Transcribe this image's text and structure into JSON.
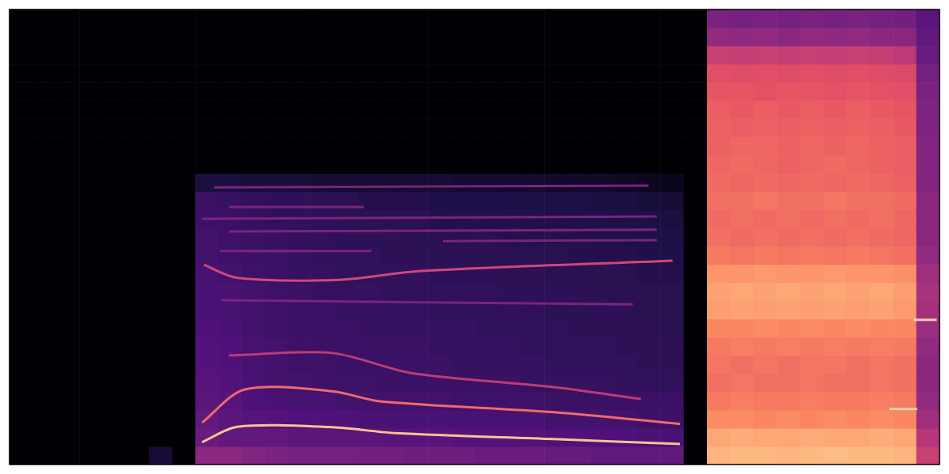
{
  "chart_data": {
    "type": "heatmap",
    "xlim": [
      0,
      100
    ],
    "ylim": [
      0,
      100
    ],
    "xticks": [],
    "yticks": [],
    "grid": false,
    "tick_labels": false,
    "color_range": [
      0,
      1
    ],
    "x_edges": [
      0,
      2.5,
      5,
      7.5,
      10,
      12.5,
      15,
      17.5,
      20,
      22.5,
      25,
      27.5,
      30,
      32.5,
      35,
      37.5,
      40,
      42.5,
      45,
      47.5,
      50,
      52.5,
      55,
      57.5,
      60,
      62.5,
      65,
      67.5,
      70,
      72.5,
      75,
      77.5,
      80,
      82.5,
      85,
      87.5,
      90,
      92.5,
      95,
      97.5,
      100
    ],
    "y_edges": [
      0,
      4,
      8,
      12,
      16,
      20,
      24,
      28,
      32,
      36,
      40,
      44,
      48,
      52,
      56,
      60,
      64,
      68,
      72,
      76,
      80,
      84,
      88,
      92,
      96,
      100
    ],
    "cells": [
      [
        0,
        0,
        0,
        0,
        0,
        0,
        0.1,
        0,
        0.4,
        0.4,
        0.38,
        0.36,
        0.35,
        0.35,
        0.35,
        0.34,
        0.34,
        0.33,
        0.33,
        0.33,
        0.32,
        0.32,
        0.32,
        0.31,
        0.31,
        0.3,
        0.3,
        0.3,
        0.3,
        0,
        0.85,
        0.86,
        0.86,
        0.85,
        0.86,
        0.87,
        0.86,
        0.86,
        0.85,
        0.55
      ],
      [
        0,
        0,
        0,
        0,
        0,
        0,
        0,
        0,
        0.32,
        0.3,
        0.3,
        0.3,
        0.28,
        0.28,
        0.28,
        0.28,
        0.27,
        0.27,
        0.27,
        0.26,
        0.26,
        0.26,
        0.26,
        0.25,
        0.25,
        0.25,
        0.25,
        0.24,
        0.24,
        0,
        0.82,
        0.83,
        0.82,
        0.82,
        0.83,
        0.82,
        0.82,
        0.83,
        0.82,
        0.5
      ],
      [
        0,
        0,
        0,
        0,
        0,
        0,
        0,
        0,
        0.3,
        0.28,
        0.27,
        0.26,
        0.25,
        0.25,
        0.25,
        0.24,
        0.24,
        0.24,
        0.24,
        0.23,
        0.23,
        0.23,
        0.23,
        0.22,
        0.22,
        0.22,
        0.22,
        0.21,
        0.21,
        0,
        0.76,
        0.76,
        0.75,
        0.76,
        0.75,
        0.76,
        0.75,
        0.76,
        0.75,
        0.45
      ],
      [
        0,
        0,
        0,
        0,
        0,
        0,
        0,
        0,
        0.28,
        0.27,
        0.25,
        0.24,
        0.23,
        0.23,
        0.22,
        0.22,
        0.22,
        0.22,
        0.22,
        0.21,
        0.21,
        0.21,
        0.21,
        0.2,
        0.2,
        0.2,
        0.2,
        0.2,
        0.2,
        0,
        0.72,
        0.73,
        0.72,
        0.72,
        0.73,
        0.72,
        0.72,
        0.73,
        0.72,
        0.42
      ],
      [
        0,
        0,
        0,
        0,
        0,
        0,
        0,
        0,
        0.27,
        0.26,
        0.24,
        0.22,
        0.22,
        0.21,
        0.21,
        0.21,
        0.2,
        0.2,
        0.2,
        0.2,
        0.2,
        0.2,
        0.19,
        0.19,
        0.19,
        0.19,
        0.18,
        0.18,
        0.18,
        0,
        0.7,
        0.71,
        0.7,
        0.7,
        0.71,
        0.7,
        0.7,
        0.71,
        0.7,
        0.4
      ],
      [
        0,
        0,
        0,
        0,
        0,
        0,
        0,
        0,
        0.26,
        0.25,
        0.23,
        0.22,
        0.21,
        0.21,
        0.2,
        0.2,
        0.2,
        0.2,
        0.2,
        0.19,
        0.19,
        0.19,
        0.19,
        0.18,
        0.18,
        0.18,
        0.18,
        0.17,
        0.17,
        0,
        0.71,
        0.7,
        0.71,
        0.7,
        0.71,
        0.71,
        0.7,
        0.71,
        0.7,
        0.4
      ],
      [
        0,
        0,
        0,
        0,
        0,
        0,
        0,
        0,
        0.26,
        0.25,
        0.23,
        0.22,
        0.21,
        0.2,
        0.2,
        0.2,
        0.2,
        0.2,
        0.19,
        0.19,
        0.19,
        0.19,
        0.18,
        0.18,
        0.18,
        0.18,
        0.17,
        0.17,
        0.17,
        0,
        0.72,
        0.73,
        0.72,
        0.73,
        0.72,
        0.73,
        0.72,
        0.73,
        0.72,
        0.42
      ],
      [
        0,
        0,
        0,
        0,
        0,
        0,
        0,
        0,
        0.25,
        0.24,
        0.22,
        0.21,
        0.2,
        0.2,
        0.2,
        0.19,
        0.19,
        0.19,
        0.19,
        0.19,
        0.18,
        0.18,
        0.18,
        0.18,
        0.17,
        0.17,
        0.17,
        0.17,
        0.16,
        0,
        0.75,
        0.75,
        0.76,
        0.75,
        0.76,
        0.75,
        0.76,
        0.75,
        0.75,
        0.44
      ],
      [
        0,
        0,
        0,
        0,
        0,
        0,
        0,
        0,
        0.24,
        0.23,
        0.22,
        0.21,
        0.2,
        0.2,
        0.19,
        0.19,
        0.19,
        0.19,
        0.18,
        0.18,
        0.18,
        0.18,
        0.18,
        0.17,
        0.17,
        0.17,
        0.17,
        0.16,
        0.16,
        0,
        0.8,
        0.81,
        0.8,
        0.81,
        0.8,
        0.81,
        0.8,
        0.81,
        0.79,
        0.46
      ],
      [
        0,
        0,
        0,
        0,
        0,
        0,
        0,
        0,
        0.24,
        0.23,
        0.22,
        0.21,
        0.2,
        0.19,
        0.19,
        0.19,
        0.18,
        0.18,
        0.18,
        0.18,
        0.18,
        0.17,
        0.17,
        0.17,
        0.17,
        0.16,
        0.16,
        0.16,
        0.16,
        0,
        0.81,
        0.82,
        0.81,
        0.82,
        0.81,
        0.82,
        0.81,
        0.82,
        0.8,
        0.47
      ],
      [
        0,
        0,
        0,
        0,
        0,
        0,
        0,
        0,
        0.23,
        0.22,
        0.21,
        0.2,
        0.19,
        0.19,
        0.18,
        0.18,
        0.18,
        0.18,
        0.17,
        0.17,
        0.17,
        0.17,
        0.17,
        0.16,
        0.16,
        0.16,
        0.16,
        0.15,
        0.15,
        0,
        0.78,
        0.78,
        0.79,
        0.78,
        0.78,
        0.79,
        0.78,
        0.78,
        0.77,
        0.45
      ],
      [
        0,
        0,
        0,
        0,
        0,
        0,
        0,
        0,
        0.22,
        0.21,
        0.2,
        0.2,
        0.19,
        0.18,
        0.18,
        0.18,
        0.17,
        0.17,
        0.17,
        0.17,
        0.16,
        0.16,
        0.16,
        0.16,
        0.15,
        0.15,
        0.15,
        0.14,
        0.14,
        0,
        0.72,
        0.71,
        0.72,
        0.71,
        0.72,
        0.71,
        0.72,
        0.71,
        0.7,
        0.42
      ],
      [
        0,
        0,
        0,
        0,
        0,
        0,
        0,
        0,
        0.22,
        0.21,
        0.2,
        0.19,
        0.18,
        0.18,
        0.17,
        0.17,
        0.17,
        0.16,
        0.16,
        0.16,
        0.16,
        0.15,
        0.15,
        0.15,
        0.15,
        0.14,
        0.14,
        0.14,
        0.13,
        0,
        0.7,
        0.69,
        0.7,
        0.69,
        0.7,
        0.69,
        0.7,
        0.69,
        0.68,
        0.4
      ],
      [
        0,
        0,
        0,
        0,
        0,
        0,
        0,
        0,
        0.21,
        0.2,
        0.19,
        0.18,
        0.18,
        0.17,
        0.17,
        0.16,
        0.16,
        0.16,
        0.15,
        0.15,
        0.15,
        0.15,
        0.14,
        0.14,
        0.14,
        0.14,
        0.13,
        0.13,
        0.12,
        0,
        0.69,
        0.7,
        0.69,
        0.7,
        0.69,
        0.7,
        0.69,
        0.7,
        0.68,
        0.4
      ],
      [
        0,
        0,
        0,
        0,
        0,
        0,
        0,
        0,
        0.2,
        0.19,
        0.18,
        0.17,
        0.17,
        0.16,
        0.16,
        0.15,
        0.15,
        0.15,
        0.14,
        0.14,
        0.14,
        0.14,
        0.13,
        0.13,
        0.13,
        0.12,
        0.12,
        0.11,
        0.1,
        0,
        0.7,
        0.7,
        0.71,
        0.7,
        0.7,
        0.71,
        0.7,
        0.7,
        0.69,
        0.4
      ],
      [
        0,
        0,
        0,
        0,
        0,
        0,
        0,
        0,
        0.12,
        0.12,
        0.11,
        0.11,
        0.11,
        0.1,
        0.1,
        0.1,
        0.1,
        0.1,
        0.1,
        0.09,
        0.09,
        0.09,
        0.09,
        0.08,
        0.08,
        0.08,
        0.07,
        0.06,
        0.05,
        0,
        0.69,
        0.68,
        0.69,
        0.68,
        0.69,
        0.68,
        0.69,
        0.68,
        0.67,
        0.38
      ],
      [
        0,
        0,
        0,
        0,
        0,
        0,
        0,
        0,
        0,
        0,
        0,
        0,
        0,
        0,
        0,
        0,
        0,
        0,
        0,
        0,
        0,
        0,
        0,
        0,
        0,
        0,
        0,
        0,
        0,
        0,
        0.68,
        0.69,
        0.68,
        0.67,
        0.68,
        0.69,
        0.68,
        0.67,
        0.66,
        0.38
      ],
      [
        0,
        0,
        0,
        0,
        0,
        0,
        0,
        0,
        0,
        0,
        0,
        0,
        0,
        0,
        0,
        0,
        0,
        0,
        0,
        0,
        0,
        0,
        0,
        0,
        0,
        0,
        0,
        0,
        0,
        0,
        0.67,
        0.68,
        0.68,
        0.67,
        0.68,
        0.67,
        0.68,
        0.67,
        0.66,
        0.38
      ],
      [
        0,
        0,
        0,
        0,
        0,
        0,
        0,
        0,
        0,
        0,
        0,
        0,
        0,
        0,
        0,
        0,
        0,
        0,
        0,
        0,
        0,
        0,
        0,
        0,
        0,
        0,
        0,
        0,
        0,
        0,
        0.67,
        0.66,
        0.67,
        0.66,
        0.67,
        0.66,
        0.67,
        0.66,
        0.65,
        0.37
      ],
      [
        0,
        0,
        0,
        0,
        0,
        0,
        0,
        0,
        0,
        0,
        0,
        0,
        0,
        0,
        0,
        0,
        0,
        0,
        0,
        0,
        0,
        0,
        0,
        0,
        0,
        0,
        0,
        0,
        0,
        0,
        0.66,
        0.65,
        0.66,
        0.65,
        0.66,
        0.65,
        0.66,
        0.65,
        0.64,
        0.37
      ],
      [
        0,
        0,
        0,
        0,
        0,
        0,
        0,
        0,
        0,
        0,
        0,
        0,
        0,
        0,
        0,
        0,
        0,
        0,
        0,
        0,
        0,
        0,
        0,
        0,
        0,
        0,
        0,
        0,
        0,
        0,
        0.64,
        0.64,
        0.63,
        0.64,
        0.64,
        0.63,
        0.64,
        0.63,
        0.62,
        0.36
      ],
      [
        0,
        0,
        0,
        0,
        0,
        0,
        0,
        0,
        0,
        0,
        0,
        0,
        0,
        0,
        0,
        0,
        0,
        0,
        0,
        0,
        0,
        0,
        0,
        0,
        0,
        0,
        0,
        0,
        0,
        0,
        0.62,
        0.61,
        0.62,
        0.61,
        0.62,
        0.61,
        0.62,
        0.61,
        0.6,
        0.35
      ],
      [
        0,
        0,
        0,
        0,
        0,
        0,
        0,
        0,
        0,
        0,
        0,
        0,
        0,
        0,
        0,
        0,
        0,
        0,
        0,
        0,
        0,
        0,
        0,
        0,
        0,
        0,
        0,
        0,
        0,
        0,
        0.55,
        0.54,
        0.55,
        0.54,
        0.55,
        0.54,
        0.55,
        0.54,
        0.52,
        0.32
      ],
      [
        0,
        0,
        0,
        0,
        0,
        0,
        0,
        0,
        0,
        0,
        0,
        0,
        0,
        0,
        0,
        0,
        0,
        0,
        0,
        0,
        0,
        0,
        0,
        0,
        0,
        0,
        0,
        0,
        0,
        0,
        0.42,
        0.41,
        0.42,
        0.4,
        0.42,
        0.41,
        0.42,
        0.4,
        0.4,
        0.3
      ],
      [
        0,
        0,
        0,
        0,
        0,
        0,
        0,
        0,
        0,
        0,
        0,
        0,
        0,
        0,
        0,
        0,
        0,
        0,
        0,
        0,
        0,
        0,
        0,
        0,
        0,
        0,
        0,
        0,
        0,
        0,
        0.36,
        0.35,
        0.36,
        0.35,
        0.36,
        0.35,
        0.36,
        0.35,
        0.34,
        0.28
      ]
    ],
    "series": [
      {
        "color": "#fcc48e",
        "x": [
          20.7,
          24.5,
          34.7,
          41.5,
          58.5,
          72.1
        ],
        "values": [
          4.9,
          8.3,
          8.2,
          6.9,
          5.6,
          4.5
        ]
      },
      {
        "color": "#f06a6a",
        "x": [
          20.7,
          25.3,
          34.7,
          39.8,
          58.5,
          72.1
        ],
        "values": [
          9.2,
          16.5,
          16.1,
          13.9,
          11.5,
          8.9
        ]
      },
      {
        "color": "#c03a76",
        "x": [
          23.6,
          34.7,
          43.2,
          58.5,
          67.9
        ],
        "values": [
          24.0,
          24.5,
          20.1,
          17.0,
          14.4
        ]
      },
      {
        "color": "#d0487a",
        "x": [
          20.9,
          24.5,
          35.5,
          44.0,
          71.3
        ],
        "values": [
          43.9,
          41.0,
          40.6,
          42.5,
          44.8
        ]
      },
      {
        "color": "#7a2482",
        "x": [
          22.6,
          38.9
        ],
        "values": [
          46.9,
          46.9
        ]
      },
      {
        "color": "#7a2482",
        "x": [
          23.6,
          69.6
        ],
        "values": [
          51.2,
          51.6
        ]
      },
      {
        "color": "#7a2482",
        "x": [
          20.7,
          69.6
        ],
        "values": [
          54.0,
          54.5
        ]
      },
      {
        "color": "#7a2482",
        "x": [
          23.6,
          38.1
        ],
        "values": [
          56.6,
          56.6
        ]
      },
      {
        "color": "#7a2482",
        "x": [
          22.0,
          68.7
        ],
        "values": [
          60.9,
          61.3
        ]
      },
      {
        "color": "#7a2482",
        "x": [
          22.8,
          67.0
        ],
        "values": [
          36.1,
          35.2
        ]
      },
      {
        "color": "#7a2482",
        "x": [
          46.6,
          69.6
        ],
        "values": [
          49.1,
          49.3
        ]
      },
      {
        "color": "#fbd0b0",
        "x": [
          94.6,
          97.6
        ],
        "values": [
          12.2,
          12.2
        ]
      },
      {
        "color": "#fbd0b0",
        "x": [
          97.2,
          99.7
        ],
        "values": [
          31.8,
          31.8
        ]
      }
    ]
  }
}
